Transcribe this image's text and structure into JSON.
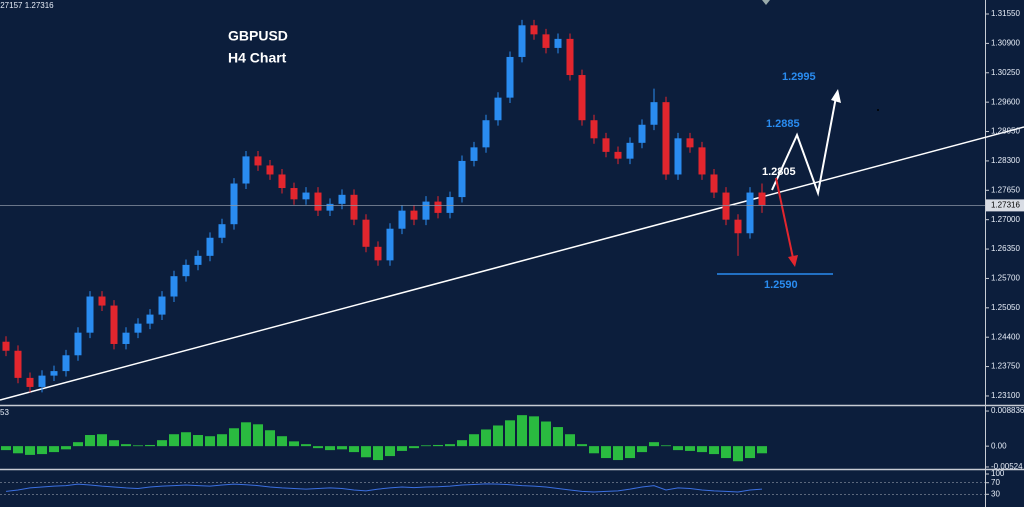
{
  "chart_data": [
    {
      "type": "candlestick",
      "title": "GBPUSD",
      "subtitle": "H4 Chart",
      "header": ".27157 1.27316",
      "open": [
        1.243,
        1.241,
        1.235,
        1.233,
        1.2355,
        1.2365,
        1.24,
        1.245,
        1.253,
        1.251,
        1.2425,
        1.245,
        1.247,
        1.249,
        1.253,
        1.2575,
        1.26,
        1.262,
        1.266,
        1.269,
        1.278,
        1.284,
        1.282,
        1.28,
        1.277,
        1.2745,
        1.276,
        1.272,
        1.2735,
        1.2755,
        1.27,
        1.264,
        1.261,
        1.268,
        1.272,
        1.27,
        1.274,
        1.2715,
        1.275,
        1.283,
        1.286,
        1.292,
        1.297,
        1.306,
        1.313,
        1.311,
        1.308,
        1.31,
        1.302,
        1.292,
        1.288,
        1.285,
        1.2835,
        1.287,
        1.291,
        1.296,
        1.28,
        1.288,
        1.286,
        1.28,
        1.276,
        1.27,
        1.267,
        1.276
      ],
      "high": [
        1.2442,
        1.2422,
        1.2362,
        1.2367,
        1.2377,
        1.2412,
        1.2462,
        1.2542,
        1.2542,
        1.2522,
        1.2462,
        1.2482,
        1.2502,
        1.2542,
        1.2587,
        1.2612,
        1.2632,
        1.2672,
        1.2702,
        1.2792,
        1.2852,
        1.2852,
        1.2832,
        1.2812,
        1.2782,
        1.2772,
        1.2772,
        1.2747,
        1.2767,
        1.2767,
        1.2712,
        1.2652,
        1.2692,
        1.2732,
        1.2732,
        1.2752,
        1.2752,
        1.2762,
        1.2842,
        1.2872,
        1.2932,
        1.2982,
        1.3072,
        1.3142,
        1.3142,
        1.3122,
        1.3112,
        1.3112,
        1.3032,
        1.2932,
        1.2892,
        1.2862,
        1.2882,
        1.2922,
        1.299,
        1.2972,
        1.2892,
        1.2892,
        1.2872,
        1.2812,
        1.2772,
        1.2712,
        1.2772,
        1.278
      ],
      "low": [
        1.2398,
        1.2338,
        1.2318,
        1.2318,
        1.2343,
        1.2353,
        1.2388,
        1.2438,
        1.2498,
        1.2413,
        1.2413,
        1.2438,
        1.2458,
        1.2478,
        1.2518,
        1.2563,
        1.2588,
        1.2608,
        1.2648,
        1.2678,
        1.2768,
        1.2808,
        1.2788,
        1.2758,
        1.2733,
        1.2733,
        1.2708,
        1.2708,
        1.2723,
        1.2688,
        1.2628,
        1.2598,
        1.2598,
        1.2668,
        1.2688,
        1.2688,
        1.2703,
        1.2703,
        1.2738,
        1.2818,
        1.2848,
        1.2908,
        1.2958,
        1.3048,
        1.3098,
        1.3068,
        1.3068,
        1.3008,
        1.2908,
        1.2868,
        1.2838,
        1.2823,
        1.2823,
        1.2858,
        1.2898,
        1.2788,
        1.2788,
        1.2848,
        1.2788,
        1.2748,
        1.2688,
        1.262,
        1.2658,
        1.2715
      ],
      "close": [
        1.241,
        1.235,
        1.233,
        1.2355,
        1.2365,
        1.24,
        1.245,
        1.253,
        1.251,
        1.2425,
        1.245,
        1.247,
        1.249,
        1.253,
        1.2575,
        1.26,
        1.262,
        1.266,
        1.269,
        1.278,
        1.284,
        1.282,
        1.28,
        1.277,
        1.2745,
        1.276,
        1.272,
        1.2735,
        1.2755,
        1.27,
        1.264,
        1.261,
        1.268,
        1.272,
        1.27,
        1.274,
        1.2715,
        1.275,
        1.283,
        1.286,
        1.292,
        1.297,
        1.306,
        1.313,
        1.311,
        1.308,
        1.31,
        1.302,
        1.292,
        1.288,
        1.285,
        1.2835,
        1.287,
        1.291,
        1.296,
        1.28,
        1.288,
        1.286,
        1.28,
        1.276,
        1.27,
        1.267,
        1.276,
        1.27316
      ],
      "up_color": "#2a8cf0",
      "down_color": "#e3262e",
      "ylim": [
        1.229,
        1.3186
      ],
      "yticks": [
        {
          "value": 1.3155,
          "label": "1.31550"
        },
        {
          "value": 1.309,
          "label": "1.30900"
        },
        {
          "value": 1.3025,
          "label": "1.30250"
        },
        {
          "value": 1.296,
          "label": "1.29600"
        },
        {
          "value": 1.2895,
          "label": "1.28950"
        },
        {
          "value": 1.283,
          "label": "1.28300"
        },
        {
          "value": 1.2765,
          "label": "1.27650"
        },
        {
          "value": 1.27,
          "label": "1.27000"
        },
        {
          "value": 1.2635,
          "label": "1.26350"
        },
        {
          "value": 1.257,
          "label": "1.25700"
        },
        {
          "value": 1.2505,
          "label": "1.25050"
        },
        {
          "value": 1.244,
          "label": "1.24400"
        },
        {
          "value": 1.2375,
          "label": "1.23750"
        },
        {
          "value": 1.231,
          "label": "1.23100"
        }
      ],
      "last_price": 1.27316,
      "annotations": [
        "1.2995",
        "1.2885",
        "1.2805",
        "1.2590"
      ]
    },
    {
      "type": "bar",
      "label": "53",
      "values": [
        -0.001,
        -0.0018,
        -0.0022,
        -0.002,
        -0.0015,
        -0.0008,
        0.001,
        0.0028,
        0.003,
        0.0015,
        0.0005,
        0.0002,
        0.0003,
        0.0015,
        0.003,
        0.0035,
        0.0028,
        0.0025,
        0.003,
        0.0045,
        0.006,
        0.0055,
        0.004,
        0.0025,
        0.0012,
        0.0005,
        -0.0005,
        -0.001,
        -0.0008,
        -0.0015,
        -0.0028,
        -0.0035,
        -0.0025,
        -0.0012,
        -0.0005,
        0.0002,
        0.0003,
        0.0005,
        0.0015,
        0.003,
        0.0042,
        0.0052,
        0.0065,
        0.0078,
        0.0075,
        0.0062,
        0.0048,
        0.003,
        0.0005,
        -0.0018,
        -0.003,
        -0.0035,
        -0.003,
        -0.0015,
        0.001,
        0.0002,
        -0.001,
        -0.0012,
        -0.0015,
        -0.002,
        -0.003,
        -0.0038,
        -0.003,
        -0.0018
      ],
      "color": "#2ecc40",
      "ylim": [
        -0.0055,
        0.0096
      ],
      "yticks": [
        0.008836,
        {
          "value": 0,
          "label": "0.00"
        },
        -0.00524
      ]
    },
    {
      "type": "line",
      "values": [
        40,
        45,
        52,
        55,
        58,
        60,
        65,
        62,
        58,
        55,
        52,
        50,
        55,
        58,
        60,
        62,
        60,
        58,
        62,
        65,
        63,
        60,
        55,
        52,
        50,
        48,
        50,
        52,
        50,
        45,
        42,
        48,
        52,
        55,
        53,
        55,
        56,
        58,
        62,
        64,
        66,
        65,
        63,
        60,
        58,
        55,
        50,
        45,
        40,
        38,
        40,
        42,
        48,
        55,
        60,
        45,
        52,
        50,
        45,
        42,
        40,
        38,
        45,
        48
      ],
      "color": "#3b6fe0",
      "ylim": [
        0,
        100
      ],
      "yticks": [
        100,
        70,
        30
      ]
    }
  ]
}
